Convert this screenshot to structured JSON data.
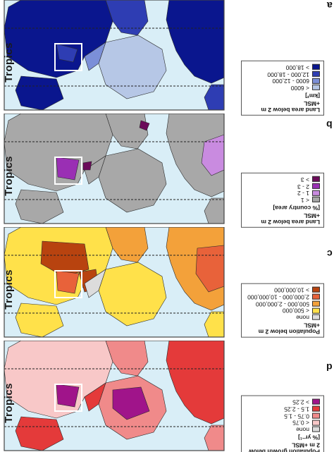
{
  "tropics_label": "Tropics",
  "panels": [
    {
      "letter": "a",
      "legend_title": "Land area below 2 m +MSL",
      "legend_unit": "[km²]",
      "colors": {
        "base": "#b6c7e6",
        "c1": "#c9d6ee",
        "c2": "#7b8fd8",
        "c3": "#2e3db3",
        "c4": "#0a168e"
      },
      "entries": [
        {
          "label": "< 6000",
          "color": "#b6c7e6"
        },
        {
          "label": "6000 - 12,000",
          "color": "#7b8fd8"
        },
        {
          "label": "12,000 - 18,000",
          "color": "#2e3db3"
        },
        {
          "label": "> 18,000",
          "color": "#0a168e"
        }
      ]
    },
    {
      "letter": "b",
      "legend_title": "Land area below 2 m +MSL",
      "legend_unit": "[% country area]",
      "colors": {
        "base": "#a8a8a8",
        "c1": "#a8a8a8",
        "c2": "#c98be0",
        "c3": "#9a2fb4",
        "c4": "#6b0b5a"
      },
      "entries": [
        {
          "label": "< 1",
          "color": "#a8a8a8"
        },
        {
          "label": "1 - 2",
          "color": "#c98be0"
        },
        {
          "label": "2 - 3",
          "color": "#9a2fb4"
        },
        {
          "label": "> 3",
          "color": "#6b0b5a"
        }
      ]
    },
    {
      "letter": "c",
      "legend_title": "Population below 2 m +MSL",
      "legend_unit": "",
      "colors": {
        "base": "#ffe14a",
        "c1": "#ffe14a",
        "c2": "#f3a13a",
        "c3": "#e8623a",
        "c4": "#b8430f"
      },
      "entries": [
        {
          "label": "none",
          "color": "#dcdcdc"
        },
        {
          "label": "< 500,000",
          "color": "#ffe14a"
        },
        {
          "label": "500,000 - 2,000,000",
          "color": "#f3a13a"
        },
        {
          "label": "2,000,000 - 10,000,000",
          "color": "#e8623a"
        },
        {
          "label": "> 10,000,000",
          "color": "#b8430f"
        }
      ]
    },
    {
      "letter": "d",
      "legend_title": "Population growth below 2 m +MSL",
      "legend_unit": "[% yr⁻¹]",
      "colors": {
        "base": "#f8c8c8",
        "c1": "#f8c8c8",
        "c2": "#f08a8a",
        "c3": "#e43a3a",
        "c4": "#a0148a"
      },
      "entries": [
        {
          "label": "none",
          "color": "#dcdcdc"
        },
        {
          "label": "< 0.75",
          "color": "#f8c8c8"
        },
        {
          "label": "0.75 - 1.5",
          "color": "#f08a8a"
        },
        {
          "label": "1.5 - 2.25",
          "color": "#e43a3a"
        },
        {
          "label": "> 2.25",
          "color": "#a0148a"
        }
      ]
    }
  ]
}
